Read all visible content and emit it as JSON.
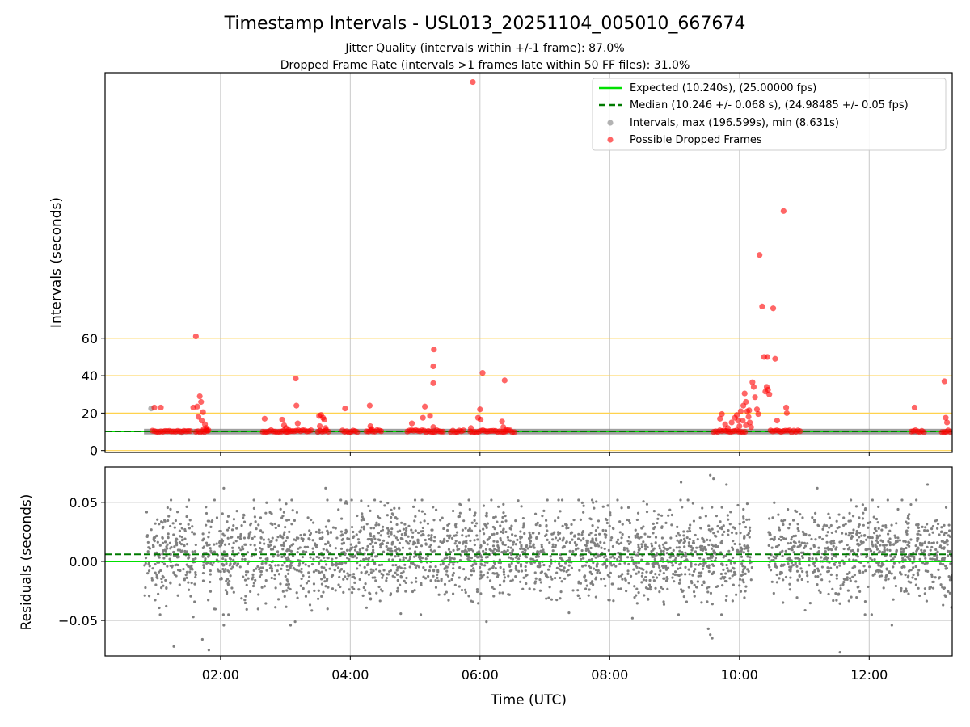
{
  "title": "Timestamp Intervals - USL013_20251104_005010_667674",
  "subtitle1": "Jitter Quality (intervals within +/-1 frame): 87.0%",
  "subtitle2": "Dropped Frame Rate (intervals >1 frames late within 50 FF files): 31.0%",
  "colors": {
    "expected": "#00e000",
    "median": "#007a00",
    "intervals": "#808080",
    "dropped": "#ff0000",
    "threshold": "#ffd24d",
    "grid": "#c8c8c8"
  },
  "chart_data": [
    {
      "type": "scatter",
      "panel": "intervals",
      "ylabel": "Intervals (seconds)",
      "xlabel": "",
      "xlim": [
        0.22,
        13.28
      ],
      "ylim": [
        -1,
        202
      ],
      "x_ticks": [
        2,
        4,
        6,
        8,
        10,
        12
      ],
      "x_tick_labels": [
        "02:00",
        "04:00",
        "06:00",
        "08:00",
        "10:00",
        "12:00"
      ],
      "y_ticks": [
        0,
        20,
        40,
        60
      ],
      "y_tick_labels": [
        "0",
        "20",
        "40",
        "60"
      ],
      "threshold_lines": [
        0,
        20,
        40,
        60
      ],
      "expected_interval": 10.24,
      "median_interval": 10.246,
      "interval_band": {
        "x_start": 0.82,
        "x_end": 13.28,
        "low": 8.631,
        "high": 11.6
      },
      "legend": {
        "location": "top-right",
        "entries": [
          {
            "label": "Expected (10.240s), (25.00000 fps)",
            "style": "solid-line"
          },
          {
            "label": "Median (10.246 +/- 0.068 s), (24.98485 +/- 0.05 fps)",
            "style": "dashed-line"
          },
          {
            "label": "Intervals, max (196.599s), min (8.631s)",
            "style": "gray-dot"
          },
          {
            "label": "Possible Dropped Frames",
            "style": "red-dot"
          }
        ]
      },
      "series": [
        {
          "name": "Intervals",
          "points": [
            [
              0.93,
              22.5
            ],
            [
              1.4,
              9.5
            ],
            [
              3.5,
              9.8
            ],
            [
              12.7,
              9.6
            ],
            [
              5.3,
              10.6
            ]
          ]
        },
        {
          "name": "Possible Dropped Frames",
          "points": [
            [
              0.98,
              23.0
            ],
            [
              1.08,
              23.0
            ],
            [
              1.62,
              61.0
            ],
            [
              1.58,
              23.0
            ],
            [
              1.64,
              23.5
            ],
            [
              1.68,
              29.0
            ],
            [
              1.7,
              26.0
            ],
            [
              1.73,
              20.5
            ],
            [
              1.66,
              18.0
            ],
            [
              1.71,
              16.0
            ],
            [
              1.76,
              14.0
            ],
            [
              1.78,
              12.0
            ],
            [
              1.74,
              11.5
            ],
            [
              1.8,
              10.5
            ],
            [
              2.68,
              17.0
            ],
            [
              2.95,
              16.5
            ],
            [
              2.98,
              13.5
            ],
            [
              3.01,
              12.0
            ],
            [
              3.05,
              11.0
            ],
            [
              3.16,
              38.5
            ],
            [
              3.17,
              24.0
            ],
            [
              3.19,
              14.5
            ],
            [
              3.55,
              19.0
            ],
            [
              3.58,
              17.5
            ],
            [
              3.6,
              16.5
            ],
            [
              3.52,
              18.5
            ],
            [
              3.53,
              13.0
            ],
            [
              3.62,
              12.0
            ],
            [
              3.92,
              22.5
            ],
            [
              4.3,
              24.0
            ],
            [
              4.31,
              13.0
            ],
            [
              4.33,
              11.5
            ],
            [
              4.95,
              14.5
            ],
            [
              5.12,
              17.5
            ],
            [
              5.15,
              23.5
            ],
            [
              5.23,
              18.5
            ],
            [
              5.28,
              45.0
            ],
            [
              5.29,
              54.0
            ],
            [
              5.28,
              36.0
            ],
            [
              5.28,
              12.5
            ],
            [
              5.86,
              12.0
            ],
            [
              5.89,
              197.0
            ],
            [
              5.97,
              17.5
            ],
            [
              6.0,
              22.0
            ],
            [
              6.01,
              16.5
            ],
            [
              6.04,
              41.5
            ],
            [
              6.38,
              37.5
            ],
            [
              6.34,
              15.5
            ],
            [
              6.36,
              12.5
            ],
            [
              6.4,
              11.0
            ],
            [
              9.7,
              17.0
            ],
            [
              9.73,
              19.5
            ],
            [
              9.78,
              14.0
            ],
            [
              9.82,
              12.0
            ],
            [
              9.88,
              15.0
            ],
            [
              9.93,
              17.5
            ],
            [
              9.96,
              19.0
            ],
            [
              9.98,
              16.0
            ],
            [
              10.02,
              21.0
            ],
            [
              10.06,
              24.0
            ],
            [
              10.08,
              30.5
            ],
            [
              10.1,
              26.0
            ],
            [
              10.12,
              21.0
            ],
            [
              10.14,
              18.0
            ],
            [
              10.16,
              15.0
            ],
            [
              10.18,
              12.5
            ],
            [
              10.2,
              36.5
            ],
            [
              10.22,
              34.0
            ],
            [
              10.24,
              28.5
            ],
            [
              10.27,
              22.0
            ],
            [
              10.29,
              19.5
            ],
            [
              10.31,
              104.5
            ],
            [
              10.35,
              77.0
            ],
            [
              10.38,
              50.0
            ],
            [
              10.4,
              31.5
            ],
            [
              10.42,
              34.0
            ],
            [
              10.44,
              32.5
            ],
            [
              10.46,
              30.0
            ],
            [
              10.43,
              50.0
            ],
            [
              10.52,
              76.0
            ],
            [
              10.55,
              49.0
            ],
            [
              10.58,
              16.0
            ],
            [
              10.68,
              128.0
            ],
            [
              10.72,
              23.0
            ],
            [
              10.73,
              20.0
            ],
            [
              10.15,
              21.5
            ],
            [
              10.1,
              13.5
            ],
            [
              10.05,
              16.0
            ],
            [
              10.0,
              13.0
            ],
            [
              12.7,
              23.0
            ],
            [
              13.16,
              37.0
            ],
            [
              13.18,
              17.5
            ],
            [
              13.2,
              15.0
            ]
          ],
          "baseline_runs": [
            [
              0.95,
              1.55
            ],
            [
              1.62,
              1.82
            ],
            [
              2.65,
              3.42
            ],
            [
              3.5,
              3.68
            ],
            [
              3.88,
              4.12
            ],
            [
              4.25,
              4.48
            ],
            [
              4.88,
              5.45
            ],
            [
              5.55,
              5.75
            ],
            [
              5.85,
              6.55
            ],
            [
              9.6,
              10.1
            ],
            [
              10.48,
              10.95
            ],
            [
              12.65,
              12.85
            ],
            [
              13.12,
              13.28
            ]
          ],
          "baseline_value": 10.3
        }
      ]
    },
    {
      "type": "scatter",
      "panel": "residuals",
      "ylabel": "Residuals (seconds)",
      "xlabel": "Time (UTC)",
      "xlim": [
        0.22,
        13.28
      ],
      "ylim": [
        -0.08,
        0.08
      ],
      "y_ticks": [
        0.05,
        0.0,
        -0.05
      ],
      "y_tick_labels": [
        "0.05",
        "0.00",
        "−0.05"
      ],
      "x_ticks": [
        2,
        4,
        6,
        8,
        10,
        12
      ],
      "x_tick_labels": [
        "02:00",
        "04:00",
        "06:00",
        "08:00",
        "10:00",
        "12:00"
      ],
      "expected_residual": 0.0,
      "median_residual": 0.006,
      "residual_std": 0.019,
      "coverage_segments": [
        [
          0.82,
          1.62
        ],
        [
          1.72,
          9.6
        ],
        [
          9.6,
          10.2
        ],
        [
          10.45,
          13.28
        ]
      ],
      "point_density_per_hour": 260,
      "notable_points": [
        [
          1.28,
          -0.072
        ],
        [
          1.58,
          -0.047
        ],
        [
          1.72,
          -0.066
        ],
        [
          1.82,
          -0.075
        ],
        [
          2.05,
          -0.054
        ],
        [
          3.08,
          -0.054
        ],
        [
          3.15,
          -0.051
        ],
        [
          6.1,
          -0.051
        ],
        [
          8.35,
          -0.048
        ],
        [
          9.52,
          -0.057
        ],
        [
          9.55,
          -0.062
        ],
        [
          9.58,
          -0.065
        ],
        [
          9.55,
          0.073
        ],
        [
          9.6,
          0.07
        ],
        [
          9.8,
          0.065
        ],
        [
          11.55,
          -0.077
        ],
        [
          12.35,
          -0.054
        ],
        [
          11.2,
          0.062
        ],
        [
          12.9,
          0.065
        ],
        [
          2.05,
          0.062
        ],
        [
          3.62,
          0.062
        ],
        [
          9.1,
          0.067
        ]
      ]
    }
  ]
}
